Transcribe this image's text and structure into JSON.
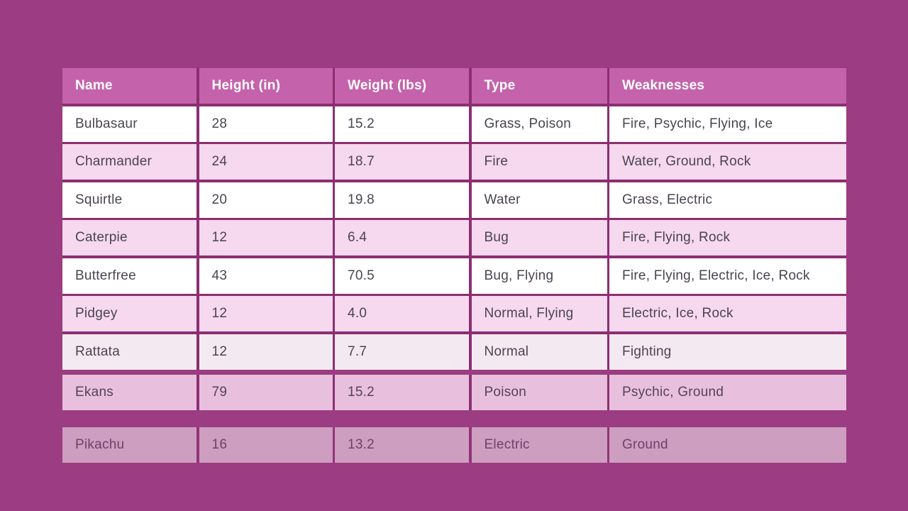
{
  "colors": {
    "page_background": "#9c3c82",
    "header_background": "#c463ab",
    "header_text": "#ffffff",
    "row_white": "#ffffff",
    "row_pink": "#f6d8ef",
    "grid_border": "#8c2e72",
    "cell_text": "#4a4450"
  },
  "chart_data": {
    "type": "table",
    "title": "",
    "columns": [
      "Name",
      "Height (in)",
      "Weight (lbs)",
      "Type",
      "Weaknesses"
    ],
    "rows": [
      [
        "Bulbasaur",
        "28",
        "15.2",
        "Grass, Poison",
        "Fire, Psychic, Flying, Ice"
      ],
      [
        "Charmander",
        "24",
        "18.7",
        "Fire",
        "Water, Ground, Rock"
      ],
      [
        "Squirtle",
        "20",
        "19.8",
        "Water",
        "Grass, Electric"
      ],
      [
        "Caterpie",
        "12",
        "6.4",
        "Bug",
        "Fire, Flying, Rock"
      ],
      [
        "Butterfree",
        "43",
        "70.5",
        "Bug, Flying",
        "Fire, Flying, Electric, Ice, Rock"
      ],
      [
        "Pidgey",
        "12",
        "4.0",
        "Normal, Flying",
        "Electric, Ice, Rock"
      ],
      [
        "Rattata",
        "12",
        "7.7",
        "Normal",
        "Fighting"
      ],
      [
        "Ekans",
        "79",
        "15.2",
        "Poison",
        "Psychic, Ground"
      ],
      [
        "Pikachu",
        "16",
        "13.2",
        "Electric",
        "Ground"
      ]
    ],
    "layout_hints": {
      "row_shading": "alternating white/pink starting white",
      "faded_rows": [
        "Rattata",
        "Ekans",
        "Pikachu"
      ],
      "detached_rows": [
        "Ekans",
        "Pikachu"
      ]
    }
  }
}
